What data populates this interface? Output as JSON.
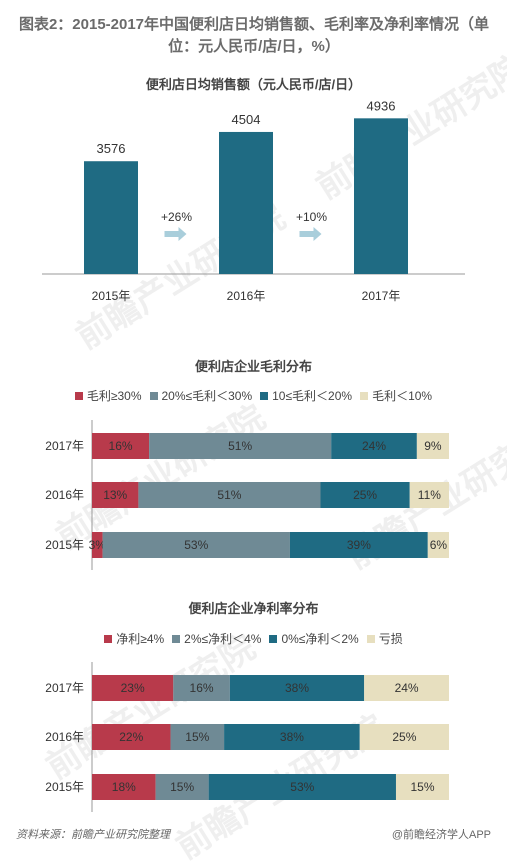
{
  "title": "图表2：2015-2017年中国便利店日均销售额、毛利率及净利率情况（单位：元人民币/店/日，%）",
  "watermark": "前瞻产业研究院",
  "footer": {
    "source": "资料来源：前瞻产业研究院整理",
    "credit": "@前瞻经济学人APP"
  },
  "colors": {
    "teal": "#1f6b83",
    "red": "#b83a4b",
    "gray": "#6f8a95",
    "beige": "#e7dfbf",
    "arrow": "#a9cedb"
  },
  "chart_data": [
    {
      "type": "bar",
      "title": "便利店日均销售额（元人民币/店/日）",
      "categories": [
        "2015年",
        "2016年",
        "2017年"
      ],
      "values": [
        3576,
        4504,
        4936
      ],
      "annotations": [
        "+26%",
        "+10%"
      ],
      "ylim": [
        0,
        5200
      ]
    },
    {
      "type": "bar",
      "orientation": "horizontal-stacked-100",
      "title": "便利店企业毛利分布",
      "legend_position": "top",
      "categories": [
        "2017年",
        "2016年",
        "2015年"
      ],
      "series": [
        {
          "name": "毛利≥30%",
          "values": [
            16,
            13,
            3
          ],
          "labels": [
            "16%",
            "13%",
            "3%"
          ],
          "color": "#b83a4b"
        },
        {
          "name": "20%≤毛利＜30%",
          "values": [
            51,
            51,
            53
          ],
          "labels": [
            "51%",
            "51%",
            "53%"
          ],
          "color": "#6f8a95"
        },
        {
          "name": "10≤毛利＜20%",
          "values": [
            24,
            25,
            39
          ],
          "labels": [
            "24%",
            "25%",
            "39%"
          ],
          "color": "#1f6b83"
        },
        {
          "name": "毛利＜10%",
          "values": [
            9,
            11,
            6
          ],
          "labels": [
            "9%",
            "11%",
            "6%"
          ],
          "color": "#e7dfbf"
        }
      ]
    },
    {
      "type": "bar",
      "orientation": "horizontal-stacked-100",
      "title": "便利店企业净利率分布",
      "legend_position": "top",
      "categories": [
        "2017年",
        "2016年",
        "2015年"
      ],
      "series": [
        {
          "name": "净利≥4%",
          "values": [
            23,
            22,
            18
          ],
          "labels": [
            "23%",
            "22%",
            "18%"
          ],
          "color": "#b83a4b"
        },
        {
          "name": "2%≤净利＜4%",
          "values": [
            16,
            15,
            15
          ],
          "labels": [
            "16%",
            "15%",
            "15%"
          ],
          "color": "#6f8a95"
        },
        {
          "name": "0%≤净利＜2%",
          "values": [
            38,
            38,
            53
          ],
          "labels": [
            "38%",
            "38%",
            "53%"
          ],
          "color": "#1f6b83"
        },
        {
          "name": "亏损",
          "values": [
            24,
            25,
            15
          ],
          "labels": [
            "24%",
            "25%",
            "15%"
          ],
          "color": "#e7dfbf"
        }
      ]
    }
  ]
}
